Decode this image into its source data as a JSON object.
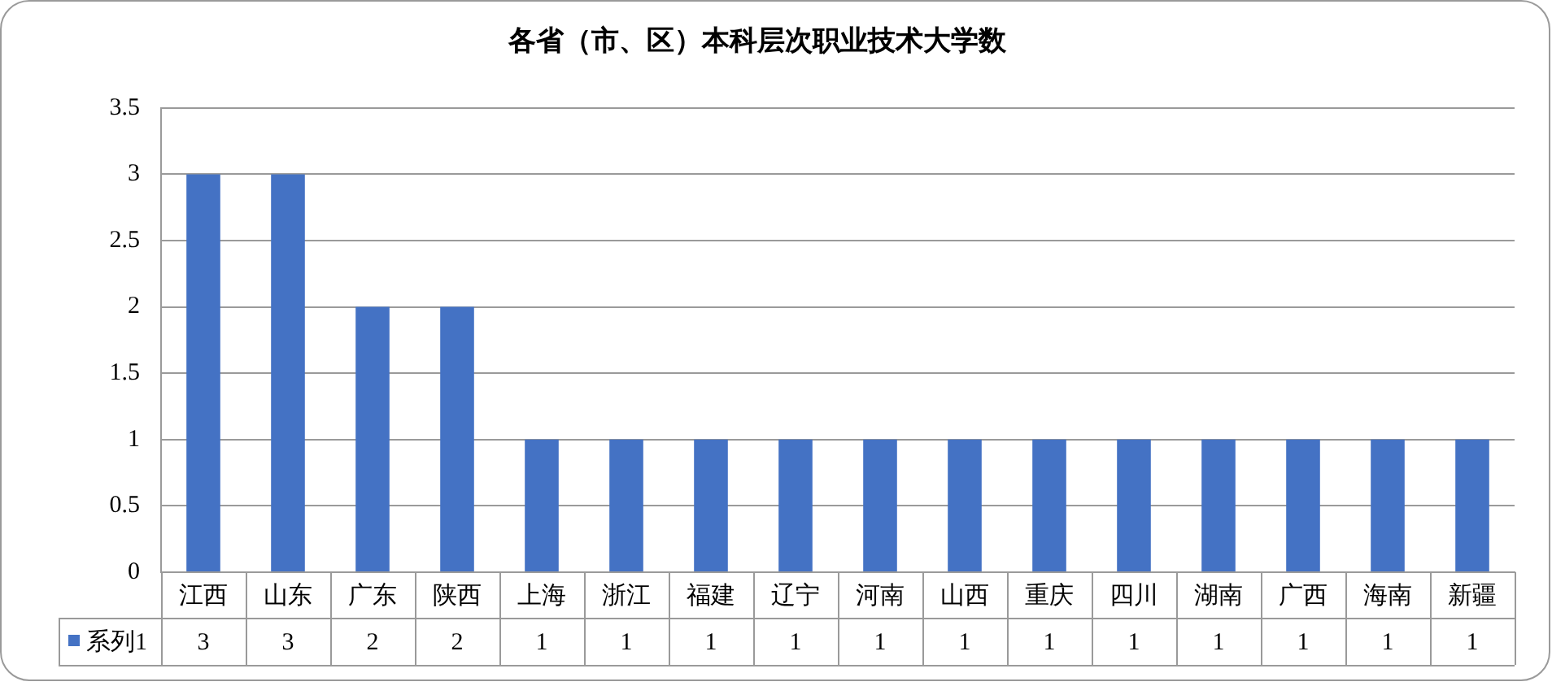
{
  "chart_data": {
    "type": "bar",
    "title": "各省（市、区）本科层次职业技术大学数",
    "categories": [
      "江西",
      "山东",
      "广东",
      "陕西",
      "上海",
      "浙江",
      "福建",
      "辽宁",
      "河南",
      "山西",
      "重庆",
      "四川",
      "湖南",
      "广西",
      "海南",
      "新疆"
    ],
    "series": [
      {
        "name": "系列1",
        "color": "#4472c4",
        "values": [
          3,
          3,
          2,
          2,
          1,
          1,
          1,
          1,
          1,
          1,
          1,
          1,
          1,
          1,
          1,
          1
        ]
      }
    ],
    "ylim": [
      0,
      3.5
    ],
    "yticks": [
      0,
      0.5,
      1,
      1.5,
      2,
      2.5,
      3,
      3.5
    ],
    "grid": "y",
    "legend": "bottom",
    "data_labels": true
  }
}
